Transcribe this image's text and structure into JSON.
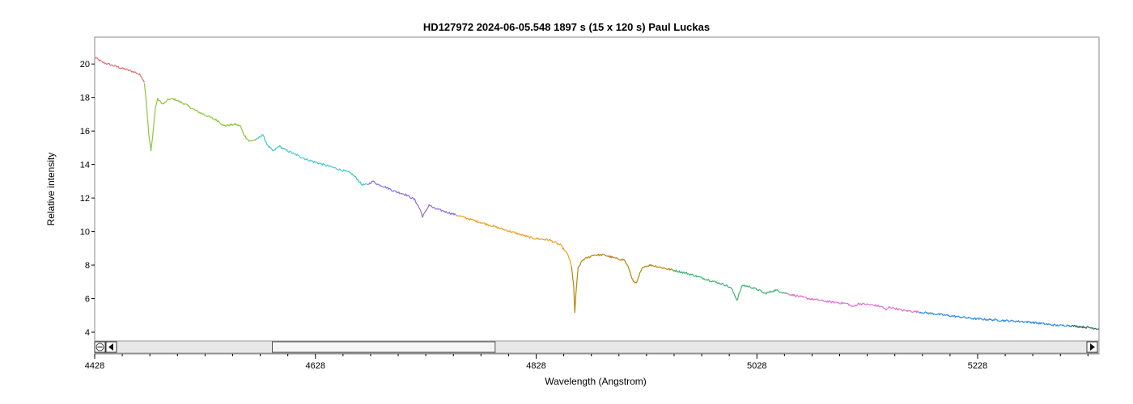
{
  "chart_data": {
    "type": "line",
    "title": "HD127972   2024-06-05.548   1897 s (15 x 120 s)   Paul Luckas",
    "xlabel": "Wavelength (Angstrom)",
    "ylabel": "Relative intensity",
    "xlim": [
      4428,
      5338
    ],
    "ylim": [
      2.7,
      21.6
    ],
    "x_ticks": [
      4428,
      4628,
      4828,
      5028,
      5228
    ],
    "x_tick_labels": [
      "4428",
      "4628",
      "4828",
      "5028",
      "5228"
    ],
    "y_ticks": [
      4,
      6,
      8,
      10,
      12,
      14,
      16,
      18,
      20
    ],
    "y_tick_labels": [
      "4",
      "6",
      "8",
      "10",
      "12",
      "14",
      "16",
      "18",
      "20"
    ],
    "grid": false,
    "legend": "none",
    "scrollbar": {
      "collapse_icon": "collapse-icon",
      "left_arrow": "left-arrow-icon",
      "right_arrow": "right-arrow-icon",
      "thumb_start": 0.16,
      "thumb_end": 0.39
    },
    "series": [
      {
        "color": "#e07070",
        "points": [
          [
            4428,
            20.4
          ],
          [
            4435,
            20.1
          ],
          [
            4445,
            19.9
          ],
          [
            4455,
            19.7
          ],
          [
            4465,
            19.5
          ],
          [
            4470,
            19.3
          ],
          [
            4473,
            18.9
          ]
        ]
      },
      {
        "color": "#8cc63f",
        "points": [
          [
            4473,
            18.9
          ],
          [
            4475,
            17.6
          ],
          [
            4477,
            15.8
          ],
          [
            4479,
            14.8
          ],
          [
            4481,
            16.0
          ],
          [
            4483,
            17.4
          ],
          [
            4485,
            17.9
          ],
          [
            4490,
            17.6
          ],
          [
            4495,
            17.9
          ],
          [
            4500,
            17.9
          ],
          [
            4510,
            17.6
          ],
          [
            4520,
            17.2
          ],
          [
            4530,
            16.9
          ],
          [
            4540,
            16.6
          ],
          [
            4545,
            16.3
          ],
          [
            4555,
            16.4
          ],
          [
            4560,
            16.3
          ],
          [
            4563,
            15.8
          ],
          [
            4568,
            15.4
          ],
          [
            4575,
            15.5
          ]
        ]
      },
      {
        "color": "#40c8c8",
        "points": [
          [
            4575,
            15.5
          ],
          [
            4580,
            15.8
          ],
          [
            4585,
            15.1
          ],
          [
            4590,
            14.8
          ],
          [
            4595,
            15.1
          ],
          [
            4600,
            14.9
          ],
          [
            4610,
            14.6
          ],
          [
            4620,
            14.3
          ],
          [
            4630,
            14.1
          ],
          [
            4640,
            13.9
          ],
          [
            4650,
            13.7
          ],
          [
            4660,
            13.5
          ],
          [
            4665,
            13.2
          ],
          [
            4670,
            12.8
          ],
          [
            4675,
            12.8
          ]
        ]
      },
      {
        "color": "#8a70d8",
        "points": [
          [
            4675,
            12.8
          ],
          [
            4680,
            13.0
          ],
          [
            4685,
            12.8
          ],
          [
            4690,
            12.7
          ],
          [
            4700,
            12.4
          ],
          [
            4710,
            12.2
          ],
          [
            4718,
            11.9
          ],
          [
            4723,
            11.3
          ],
          [
            4725,
            10.9
          ],
          [
            4728,
            11.2
          ],
          [
            4731,
            11.6
          ],
          [
            4735,
            11.4
          ],
          [
            4745,
            11.2
          ],
          [
            4755,
            11.0
          ]
        ]
      },
      {
        "color": "#f0a020",
        "points": [
          [
            4755,
            11.0
          ],
          [
            4770,
            10.7
          ],
          [
            4785,
            10.4
          ],
          [
            4800,
            10.1
          ],
          [
            4815,
            9.8
          ],
          [
            4825,
            9.6
          ],
          [
            4840,
            9.5
          ],
          [
            4850,
            9.2
          ],
          [
            4857,
            8.6
          ],
          [
            4860,
            7.9
          ]
        ]
      },
      {
        "color": "#b8860b",
        "points": [
          [
            4860,
            7.9
          ],
          [
            4862,
            6.8
          ],
          [
            4863,
            5.1
          ],
          [
            4864,
            6.3
          ],
          [
            4866,
            7.8
          ],
          [
            4870,
            8.3
          ],
          [
            4880,
            8.6
          ],
          [
            4890,
            8.6
          ],
          [
            4900,
            8.4
          ],
          [
            4908,
            8.3
          ],
          [
            4912,
            7.8
          ],
          [
            4916,
            7.0
          ],
          [
            4919,
            6.9
          ],
          [
            4922,
            7.5
          ],
          [
            4925,
            7.9
          ],
          [
            4932,
            8.0
          ],
          [
            4945,
            7.8
          ],
          [
            4952,
            7.7
          ]
        ]
      },
      {
        "color": "#3cb371",
        "points": [
          [
            4952,
            7.7
          ],
          [
            4965,
            7.5
          ],
          [
            4980,
            7.2
          ],
          [
            4990,
            7.0
          ],
          [
            5000,
            6.8
          ],
          [
            5005,
            6.6
          ],
          [
            5008,
            6.2
          ],
          [
            5010,
            5.9
          ],
          [
            5012,
            6.3
          ],
          [
            5015,
            6.8
          ],
          [
            5022,
            6.7
          ],
          [
            5030,
            6.5
          ],
          [
            5035,
            6.3
          ],
          [
            5045,
            6.5
          ],
          [
            5055,
            6.3
          ]
        ]
      },
      {
        "color": "#e070d0",
        "points": [
          [
            5055,
            6.3
          ],
          [
            5075,
            6.0
          ],
          [
            5095,
            5.8
          ],
          [
            5110,
            5.7
          ],
          [
            5115,
            5.5
          ],
          [
            5120,
            5.7
          ],
          [
            5135,
            5.6
          ],
          [
            5142,
            5.5
          ],
          [
            5145,
            5.3
          ],
          [
            5148,
            5.5
          ],
          [
            5160,
            5.3
          ],
          [
            5175,
            5.2
          ]
        ]
      },
      {
        "color": "#2a8ae8",
        "points": [
          [
            5175,
            5.2
          ],
          [
            5200,
            5.0
          ],
          [
            5225,
            4.8
          ],
          [
            5250,
            4.7
          ],
          [
            5275,
            4.6
          ],
          [
            5300,
            4.4
          ],
          [
            5310,
            4.4
          ]
        ]
      },
      {
        "color": "#2a6a60",
        "points": [
          [
            5310,
            4.4
          ],
          [
            5325,
            4.3
          ],
          [
            5338,
            4.2
          ]
        ]
      }
    ]
  }
}
